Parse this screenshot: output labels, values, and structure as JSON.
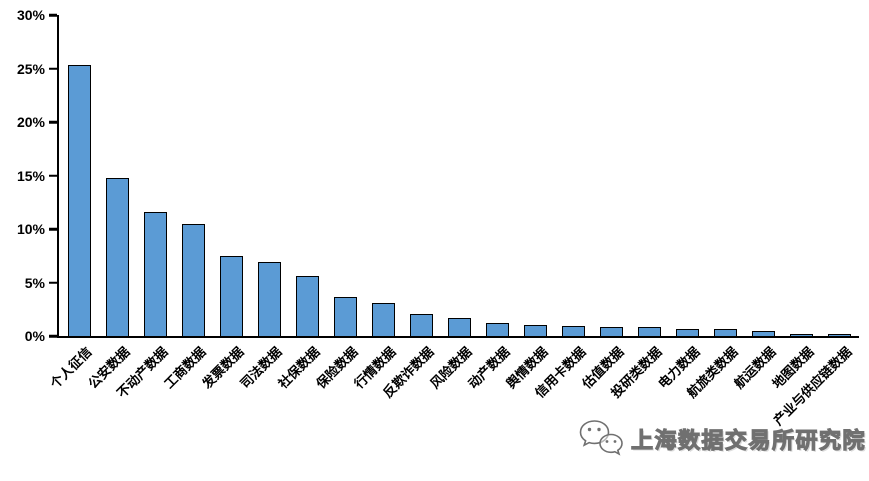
{
  "chart_data": {
    "type": "bar",
    "title": "",
    "xlabel": "",
    "ylabel": "",
    "categories": [
      "个人征信",
      "公安数据",
      "不动产数据",
      "工商数据",
      "发票数据",
      "司法数据",
      "社保数据",
      "保险数据",
      "行情数据",
      "反欺诈数据",
      "风险数据",
      "动产数据",
      "舆情数据",
      "信用卡数据",
      "估值数据",
      "投研类数据",
      "电力数据",
      "航旅类数据",
      "航运数据",
      "地图数据",
      "产业与供应链数据"
    ],
    "values": [
      25.3,
      14.8,
      11.6,
      10.5,
      7.5,
      6.9,
      5.6,
      3.6,
      3.1,
      2.1,
      1.7,
      1.2,
      1.0,
      0.9,
      0.85,
      0.85,
      0.7,
      0.65,
      0.5,
      0.2,
      0.1
    ],
    "ylim": [
      0,
      30
    ],
    "ytick_values": [
      0,
      5,
      10,
      15,
      20,
      25,
      30
    ],
    "ytick_labels": [
      "0%",
      "5%",
      "10%",
      "15%",
      "20%",
      "25%",
      "30%"
    ],
    "grid": false,
    "legend": false,
    "x_label_rotation_deg": 45,
    "bar_color": "#5B9BD5",
    "bar_border_color": "#000000",
    "axis_color": "#000000"
  },
  "watermark": {
    "icon": "wechat-icon",
    "text": "上海数据交易所研究院"
  }
}
